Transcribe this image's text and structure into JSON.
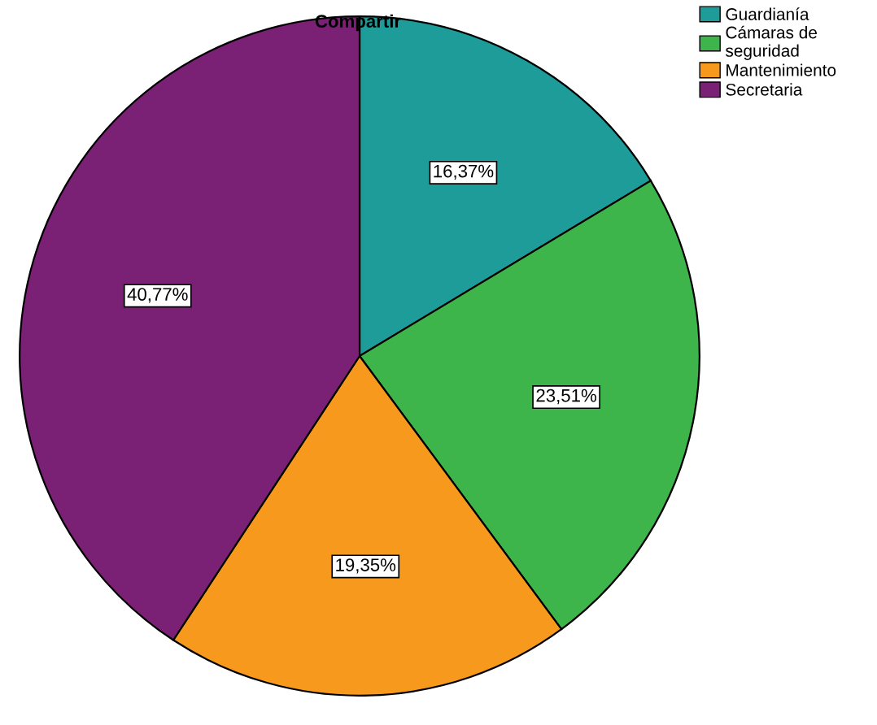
{
  "chart_data": {
    "type": "pie",
    "title": "Compartir",
    "categories": [
      "Guardianía",
      "Cámaras de\nseguridad",
      "Mantenimiento",
      "Secretaria"
    ],
    "values": [
      16.37,
      23.51,
      19.35,
      40.77
    ],
    "value_labels": [
      "16,37%",
      "23,51%",
      "19,35%",
      "40,77%"
    ],
    "colors": [
      "#1e9c9a",
      "#3db54a",
      "#f7991c",
      "#7b2175"
    ],
    "legend": "top right"
  }
}
